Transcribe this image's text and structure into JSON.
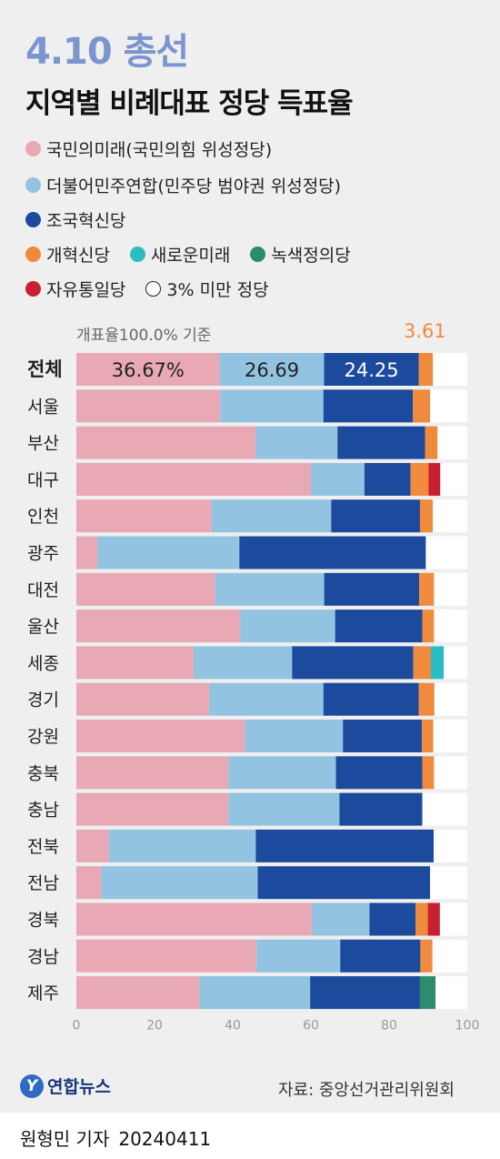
{
  "header": {
    "title": "4.10 총선",
    "subtitle": "지역별 비례대표 정당 득표율"
  },
  "legend": [
    {
      "label": "국민의미래(국민의힘 위성정당)",
      "color": "#e8a9b5"
    },
    {
      "label": "더불어민주연합(민주당 범야권 위성정당)",
      "color": "#92c3e0"
    },
    {
      "label": "조국혁신당",
      "color": "#1c4a9c"
    },
    {
      "label": "개혁신당",
      "color": "#f08a3c"
    },
    {
      "label": "새로운미래",
      "color": "#2bbdc2"
    },
    {
      "label": "녹색정의당",
      "color": "#2e8b6c"
    },
    {
      "label": "자유통일당",
      "color": "#c8202e"
    },
    {
      "label": "3% 미만 정당",
      "color": "#ffffff"
    }
  ],
  "note": "개표율100.0% 기준",
  "callout": "3.61",
  "chart_data": {
    "type": "bar",
    "orientation": "horizontal",
    "stacked": true,
    "categories": [
      "전체",
      "서울",
      "부산",
      "대구",
      "인천",
      "광주",
      "대전",
      "울산",
      "세종",
      "경기",
      "강원",
      "충북",
      "충남",
      "전북",
      "전남",
      "경북",
      "경남",
      "제주"
    ],
    "series": [
      {
        "name": "국민의미래(국민의힘 위성정당)",
        "color": "#e8a9b5",
        "values": [
          36.67,
          36.8,
          45.9,
          60,
          34.6,
          5.4,
          35.5,
          41.9,
          30,
          34,
          43.1,
          38.9,
          38.9,
          8.3,
          6.4,
          60.2,
          46.1,
          31.5
        ]
      },
      {
        "name": "더불어민주연합(민주당 범야권 위성정당)",
        "color": "#92c3e0",
        "values": [
          26.69,
          26.4,
          20.9,
          13.7,
          30.6,
          36.3,
          27.9,
          24.3,
          25.2,
          29.2,
          25.1,
          27.5,
          28.4,
          37.6,
          40,
          14.8,
          21.4,
          28.3
        ]
      },
      {
        "name": "조국혁신당",
        "color": "#1c4a9c",
        "values": [
          24.25,
          22.9,
          22.4,
          11.8,
          22.7,
          47.7,
          24.3,
          22.3,
          31,
          24.4,
          20.2,
          22.1,
          21.2,
          45.5,
          44.1,
          11.8,
          20.5,
          28.1
        ]
      },
      {
        "name": "개혁신당",
        "color": "#f08a3c",
        "values": [
          3.61,
          4.4,
          3.2,
          4.6,
          3.3,
          0,
          3.8,
          3,
          4.5,
          4,
          2.9,
          3,
          0,
          0,
          0,
          3.1,
          3.1,
          0
        ]
      },
      {
        "name": "새로운미래",
        "color": "#2bbdc2",
        "values": [
          0,
          0,
          0,
          0,
          0,
          0,
          0,
          0,
          3.3,
          0,
          0,
          0,
          0,
          0,
          0,
          0,
          0,
          0
        ]
      },
      {
        "name": "녹색정의당",
        "color": "#2e8b6c",
        "values": [
          0,
          0,
          0,
          0,
          0,
          0,
          0,
          0,
          0,
          0,
          0,
          0,
          0,
          0,
          0,
          0,
          0,
          4
        ]
      },
      {
        "name": "자유통일당",
        "color": "#c8202e",
        "values": [
          0,
          0,
          0,
          3,
          0,
          0,
          0,
          0,
          0,
          0,
          0,
          0,
          0,
          0,
          0,
          3.1,
          0,
          0
        ]
      },
      {
        "name": "3% 미만 정당",
        "color": "#ffffff",
        "values": [
          8.78,
          9.5,
          7.6,
          6.9,
          8.8,
          10.6,
          8.5,
          8.5,
          6,
          8.4,
          8.7,
          8.5,
          11.5,
          8.6,
          9.5,
          7,
          8.9,
          8.1
        ]
      }
    ],
    "data_labels": [
      "36.67%",
      "26.69",
      "24.25"
    ],
    "xlim": [
      0,
      100
    ],
    "xticks": [
      "0",
      "20",
      "40",
      "60",
      "80",
      "100"
    ],
    "grid": false,
    "legend_position": "top"
  },
  "footer": {
    "logo_text": "연합뉴스",
    "source": "자료: 중앙선거관리위원회",
    "author": "원형민 기자",
    "date": "20240411"
  }
}
